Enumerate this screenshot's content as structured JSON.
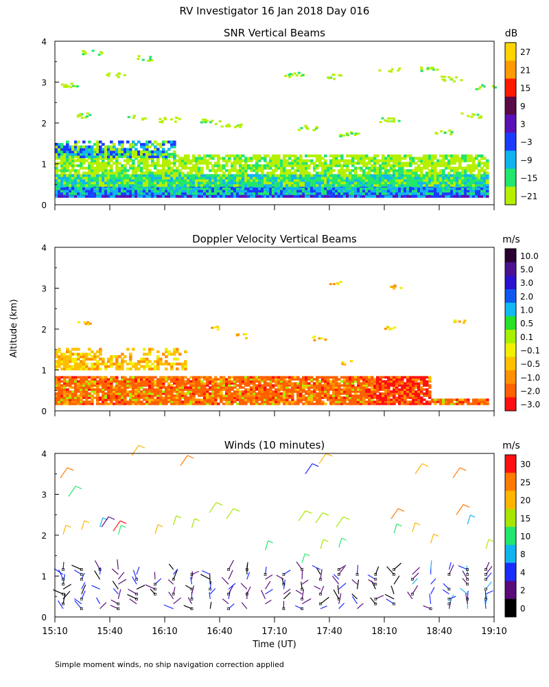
{
  "title": "RV Investigator  16 Jan 2018 Day 016",
  "footnote": "Simple moment winds, no ship navigation correction applied",
  "y_axis_label": "Altitude (km)",
  "x_axis_label": "Time (UT)",
  "chart_data": [
    {
      "type": "heatmap",
      "title": "SNR Vertical Beams",
      "xlim": [
        "15:10",
        "19:10"
      ],
      "ylim": [
        0,
        4
      ],
      "yticks": [
        "0",
        "1",
        "2",
        "3",
        "4"
      ],
      "colorbar": {
        "unit": "dB",
        "labels": [
          "27",
          "21",
          "15",
          "9",
          "3",
          "−3",
          "−9",
          "−15",
          "−21"
        ],
        "colors": [
          "#ffd400",
          "#ff9a00",
          "#ff1a00",
          "#5a0a46",
          "#5a10b8",
          "#1a3cff",
          "#12b4f0",
          "#22e66e",
          "#b6f000"
        ]
      }
    },
    {
      "type": "heatmap",
      "title": "Doppler Velocity Vertical Beams",
      "xlim": [
        "15:10",
        "19:10"
      ],
      "ylim": [
        0,
        4
      ],
      "yticks": [
        "0",
        "1",
        "2",
        "3",
        "4"
      ],
      "colorbar": {
        "unit": "m/s",
        "labels": [
          "10.0",
          "5.0",
          "3.0",
          "2.0",
          "1.0",
          "0.5",
          "0.1",
          "−0.1",
          "−0.5",
          "−1.0",
          "−2.0",
          "−3.0"
        ],
        "colors": [
          "#2a0030",
          "#4a1290",
          "#2a12d0",
          "#0e58f0",
          "#12b8f0",
          "#28e028",
          "#a6f000",
          "#f0f000",
          "#ffc000",
          "#ff9000",
          "#ff6000",
          "#ff1010"
        ]
      }
    },
    {
      "type": "scatter",
      "title": "Winds (10 minutes)",
      "xlim": [
        "15:10",
        "19:10"
      ],
      "ylim": [
        0,
        4
      ],
      "yticks": [
        "0",
        "1",
        "2",
        "3",
        "4"
      ],
      "xticks": [
        "15:10",
        "15:40",
        "16:10",
        "16:40",
        "17:10",
        "17:40",
        "18:10",
        "18:40",
        "19:10"
      ],
      "colorbar": {
        "unit": "m/s",
        "labels": [
          "30",
          "25",
          "20",
          "15",
          "10",
          "8",
          "4",
          "2",
          "0"
        ],
        "colors": [
          "#ff1010",
          "#ff7a00",
          "#ffb400",
          "#a6e600",
          "#22e66e",
          "#12b4f0",
          "#1a2cff",
          "#5a0a7a",
          "#000000"
        ]
      }
    }
  ]
}
